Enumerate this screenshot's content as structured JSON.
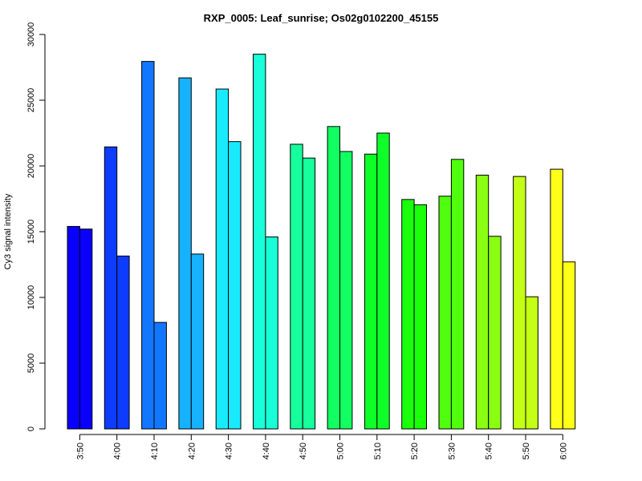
{
  "chart_data": {
    "type": "bar",
    "title": "RXP_0005: Leaf_sunrise; Os02g0102200_45155",
    "xlabel": "",
    "ylabel": "Cy3 signal intensity",
    "ylim": [
      0,
      30000
    ],
    "yticks": [
      0,
      5000,
      10000,
      15000,
      20000,
      25000,
      30000
    ],
    "grid": false,
    "legend": "none",
    "categories": [
      "3:50",
      "4:00",
      "4:10",
      "4:20",
      "4:30",
      "4:40",
      "4:50",
      "5:00",
      "5:10",
      "5:20",
      "5:30",
      "5:40",
      "5:50",
      "6:00"
    ],
    "colors": [
      "#0A00FF",
      "#0E3CFF",
      "#1277FF",
      "#16B2FF",
      "#19EBFF",
      "#19FFD8",
      "#16FF9C",
      "#12FF62",
      "#0EFF28",
      "#1AFF0A",
      "#50FF0E",
      "#8AFF12",
      "#C4FF16",
      "#FFFF19"
    ],
    "series": [
      {
        "values": [
          15400,
          21450,
          27950,
          26700,
          25850,
          28500,
          21650,
          23000,
          20900,
          17450,
          17700,
          19300,
          19200,
          19750
        ]
      },
      {
        "values": [
          15200,
          13150,
          8100,
          13300,
          21850,
          14600,
          20600,
          21100,
          22500,
          17050,
          20500,
          14650,
          10050,
          12700
        ]
      }
    ]
  }
}
